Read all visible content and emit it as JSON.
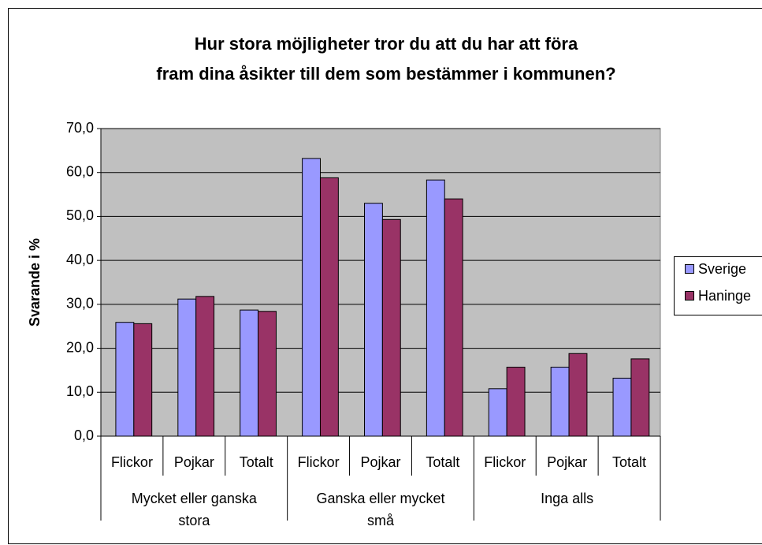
{
  "chart_data": {
    "type": "bar",
    "title": "Hur stora möjligheter tror du att du har att föra fram dina åsikter till dem som bestämmer i kommunen?",
    "ylabel": "Svarande i  %",
    "categories": [
      "Flickor",
      "Pojkar",
      "Totalt",
      "Flickor",
      "Pojkar",
      "Totalt",
      "Flickor",
      "Pojkar",
      "Totalt"
    ],
    "category_groups": [
      "Mycket eller ganska stora",
      "Ganska eller mycket små",
      "Inga alls"
    ],
    "series": [
      {
        "name": "Sverige",
        "color": "#9999ff",
        "values": [
          25.9,
          31.2,
          28.7,
          63.2,
          53.0,
          58.3,
          10.8,
          15.7,
          13.2
        ]
      },
      {
        "name": "Haninge",
        "color": "#993366",
        "values": [
          25.6,
          31.8,
          28.4,
          58.8,
          49.3,
          54.0,
          15.7,
          18.8,
          17.6
        ]
      }
    ],
    "ylim": [
      0,
      70
    ],
    "yticks": [
      {
        "value": 0,
        "label": "0,0"
      },
      {
        "value": 10,
        "label": "10,0"
      },
      {
        "value": 20,
        "label": "20,0"
      },
      {
        "value": 30,
        "label": "30,0"
      },
      {
        "value": 40,
        "label": "40,0"
      },
      {
        "value": 50,
        "label": "50,0"
      },
      {
        "value": 60,
        "label": "60,0"
      },
      {
        "value": 70,
        "label": "70,0"
      }
    ],
    "grid": true,
    "legend": "right",
    "plot_background": "#c0c0c0"
  }
}
